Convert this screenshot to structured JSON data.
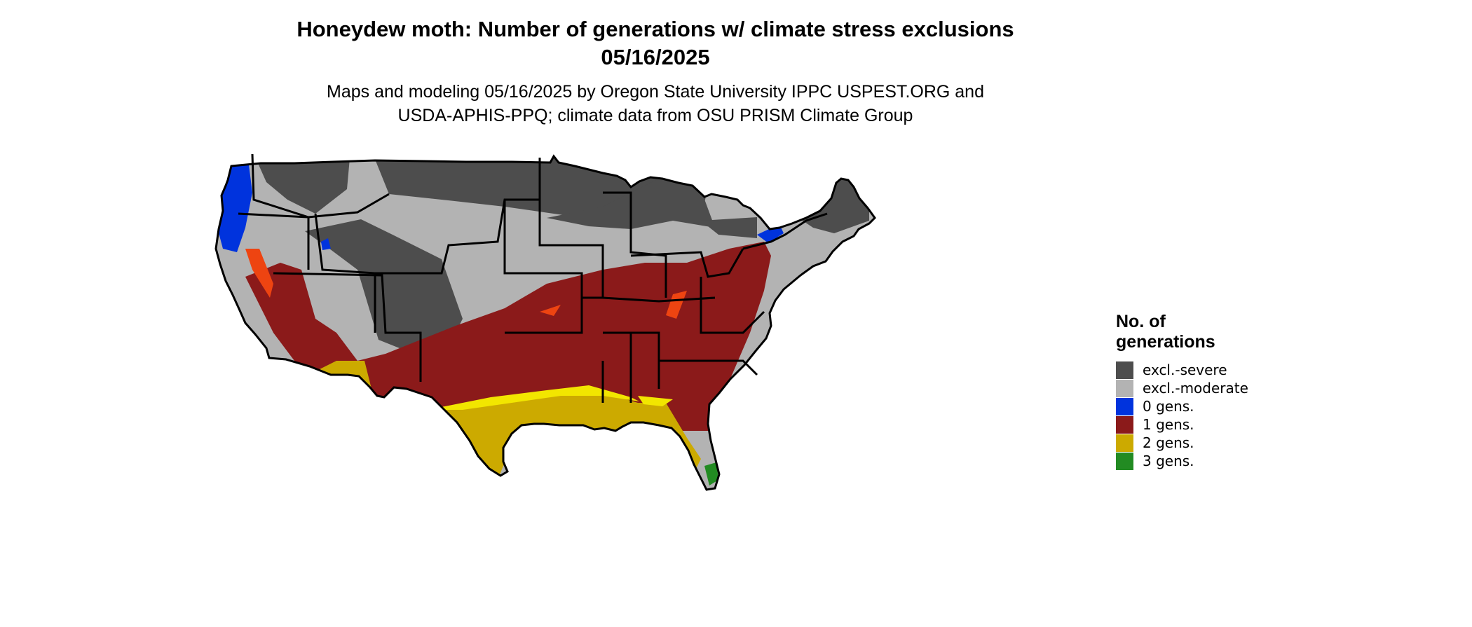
{
  "header": {
    "title_line1": "Honeydew moth: Number of generations w/ climate stress exclusions",
    "title_line2": "05/16/2025",
    "subtitle_line1": "Maps and modeling 05/16/2025 by Oregon State University IPPC USPEST.ORG and",
    "subtitle_line2": "USDA-APHIS-PPQ; climate data from OSU PRISM Climate Group"
  },
  "legend": {
    "title_line1": "No. of",
    "title_line2": "generations",
    "items": [
      {
        "label": "excl.-severe",
        "color": "#4d4d4d"
      },
      {
        "label": "excl.-moderate",
        "color": "#b3b3b3"
      },
      {
        "label": "0 gens.",
        "color": "#0033dd"
      },
      {
        "label": "1 gens.",
        "color": "#8b1a1a"
      },
      {
        "label": "2 gens.",
        "color": "#ccaa00"
      },
      {
        "label": "3 gens.",
        "color": "#228b22"
      }
    ]
  },
  "map_colors": {
    "severe": "#4d4d4d",
    "moderate": "#b3b3b3",
    "zero": "#0033dd",
    "one": "#8b1a1a",
    "two": "#ccaa00",
    "two_bright": "#f2e600",
    "three": "#228b22",
    "orange": "#ee4411",
    "borders": "#000000"
  }
}
